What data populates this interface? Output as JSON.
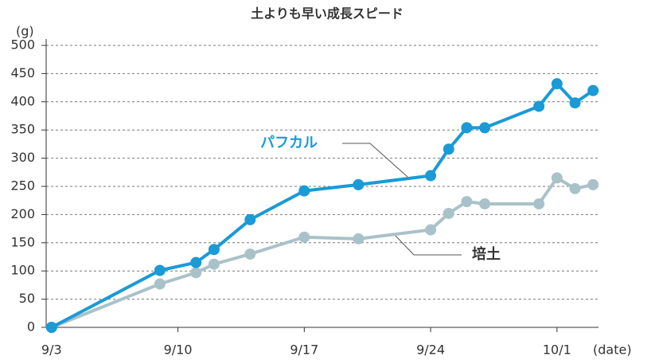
{
  "chart_data": {
    "type": "line",
    "title": "土よりも早い成長スピード",
    "y_label": "(g)",
    "x_label": "(date)",
    "x": [
      0,
      6,
      8,
      9,
      11,
      14,
      17,
      21,
      22,
      23,
      24,
      27,
      28,
      29,
      30
    ],
    "series": [
      {
        "name": "パフカル",
        "color": "#1a9ad6",
        "values": [
          0,
          101,
          115,
          138,
          191,
          242,
          253,
          269,
          316,
          354,
          354,
          392,
          432,
          398,
          420
        ]
      },
      {
        "name": "培土",
        "color": "#a9c2c9",
        "values": [
          0,
          77,
          97,
          112,
          130,
          160,
          157,
          173,
          202,
          223,
          219,
          219,
          265,
          246,
          253
        ]
      }
    ],
    "xlim": [
      -0.3,
      30.3
    ],
    "xticks": [
      {
        "value": 0,
        "label": "9/3"
      },
      {
        "value": 7,
        "label": "9/10"
      },
      {
        "value": 14,
        "label": "9/17"
      },
      {
        "value": 21,
        "label": "9/24"
      },
      {
        "value": 28,
        "label": "10/1"
      }
    ],
    "ylim": [
      0,
      500
    ],
    "yticks": [
      0,
      50,
      100,
      150,
      200,
      250,
      300,
      350,
      400,
      450,
      500
    ],
    "grid": true
  }
}
